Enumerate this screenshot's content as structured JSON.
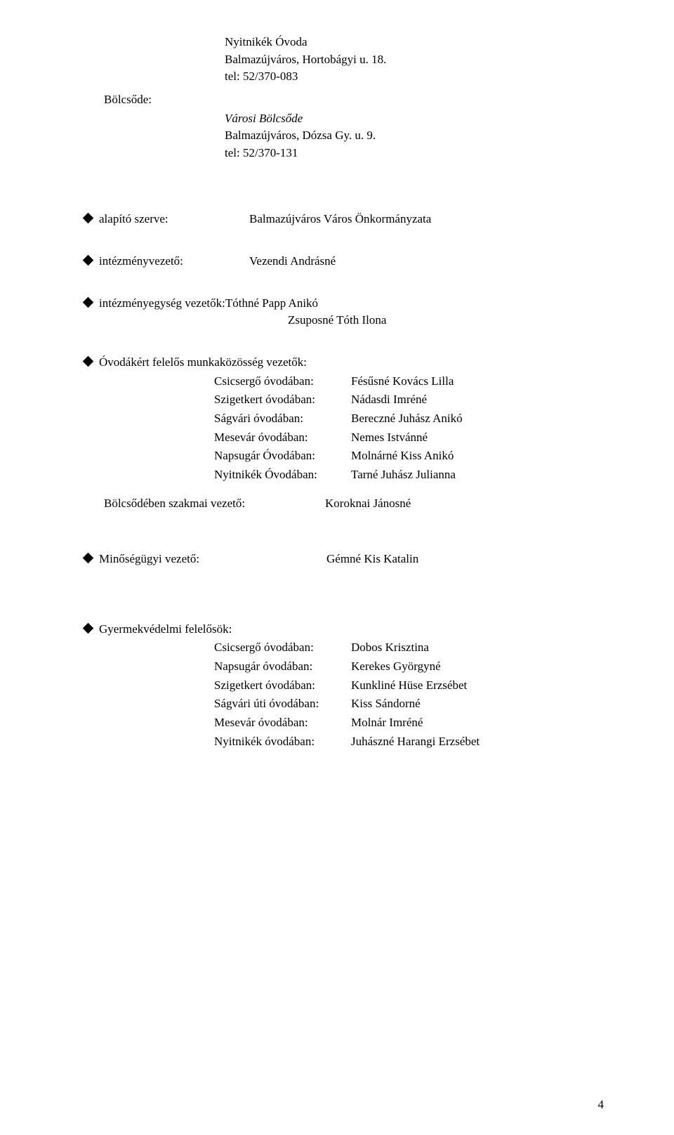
{
  "header": {
    "org": "Nyitnikék  Óvoda",
    "addr": "Balmazújváros, Hortobágyi u. 18.",
    "tel": "tel: 52/370-083"
  },
  "bolcsode": {
    "label": "Bölcsőde:",
    "name": "Városi Bölcsőde",
    "addr": "Balmazújváros, Dózsa Gy. u. 9.",
    "tel": "tel: 52/370-131"
  },
  "alapito": {
    "label": "alapító szerve:",
    "value": "Balmazújváros Város Önkormányzata"
  },
  "intvez": {
    "label": "intézményvezető:",
    "value": "Vezendi Andrásné"
  },
  "integys": {
    "label": "intézményegység vezetők:Tóthné Papp Anikó",
    "line2": "Zsuposné Tóth Ilona"
  },
  "mk": {
    "label": "Óvodákért felelős munkaközösség vezetők:",
    "rows": [
      {
        "a": "Csicsergő óvodában:",
        "b": "Fésűsné Kovács Lilla"
      },
      {
        "a": "Szigetkert óvodában:",
        "b": "Nádasdi Imréné"
      },
      {
        "a": "Ságvári óvodában:",
        "b": "Bereczné Juhász Anikó"
      },
      {
        "a": "Mesevár óvodában:",
        "b": "Nemes Istvánné"
      },
      {
        "a": "Napsugár Óvodában:",
        "b": "Molnárné Kiss Anikó"
      },
      {
        "a": "Nyitnikék Óvodában:",
        "b": "Tarné Juhász Julianna"
      }
    ]
  },
  "bolcsVez": {
    "label": "Bölcsődében szakmai vezető:",
    "value": "Koroknai Jánosné"
  },
  "minoseg": {
    "label": "Minőségügyi vezető:",
    "value": "Gémné Kis Katalin"
  },
  "gyv": {
    "label": "Gyermekvédelmi felelősök:",
    "rows": [
      {
        "a": "Csicsergő óvodában:",
        "b": "Dobos Krisztina"
      },
      {
        "a": "Napsugár óvodában:",
        "b": "Kerekes Györgyné"
      },
      {
        "a": "Szigetkert óvodában:",
        "b": "Kunkliné Hüse Erzsébet"
      },
      {
        "a": "Ságvári úti óvodában:",
        "b": "Kiss Sándorné"
      },
      {
        "a": "Mesevár  óvodában:",
        "b": "Molnár Imréné"
      },
      {
        "a": "Nyitnikék  óvodában:",
        "b": "Juhászné Harangi  Erzsébet"
      }
    ]
  },
  "pageNumber": "4"
}
